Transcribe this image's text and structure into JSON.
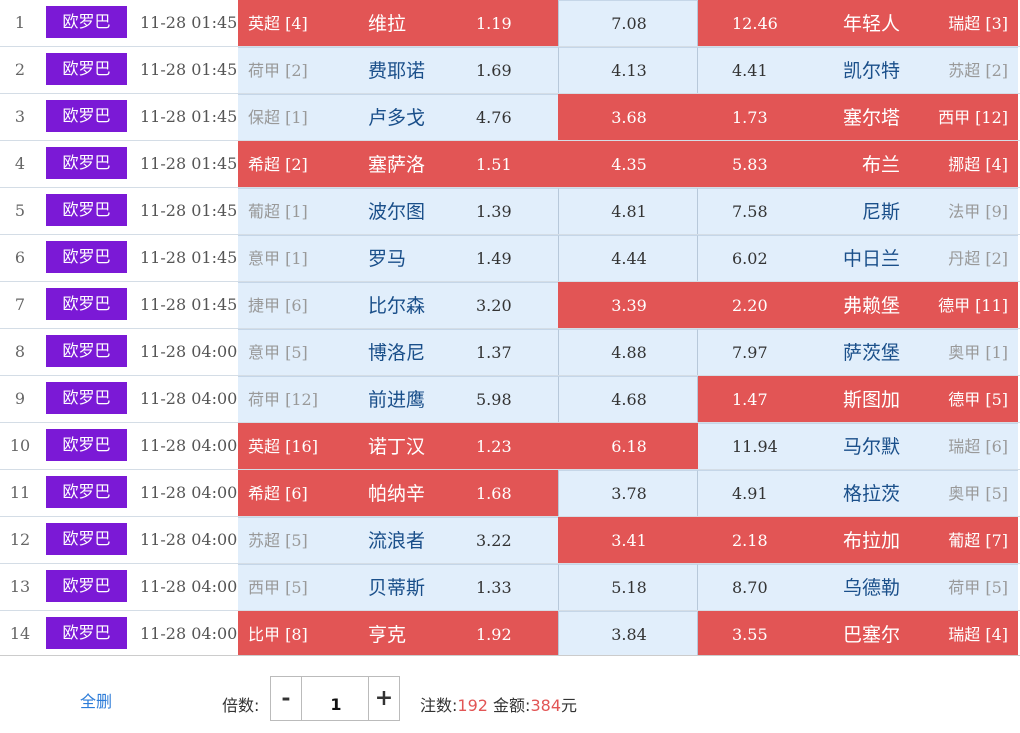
{
  "matches": [
    {
      "idx": "1",
      "league": "欧罗巴",
      "time": "11-28 01:45",
      "home_league": "英超 [4]",
      "home": "维拉",
      "home_odds": "1.19",
      "draw_odds": "7.08",
      "away_odds": "12.46",
      "away": "年轻人",
      "away_league": "瑞超 [3]",
      "home_selected": true,
      "draw_selected": false,
      "away_selected": true
    },
    {
      "idx": "2",
      "league": "欧罗巴",
      "time": "11-28 01:45",
      "home_league": "荷甲 [2]",
      "home": "费耶诺",
      "home_odds": "1.69",
      "draw_odds": "4.13",
      "away_odds": "4.41",
      "away": "凯尔特",
      "away_league": "苏超 [2]",
      "home_selected": false,
      "draw_selected": false,
      "away_selected": false
    },
    {
      "idx": "3",
      "league": "欧罗巴",
      "time": "11-28 01:45",
      "home_league": "保超 [1]",
      "home": "卢多戈",
      "home_odds": "4.76",
      "draw_odds": "3.68",
      "away_odds": "1.73",
      "away": "塞尔塔",
      "away_league": "西甲 [12]",
      "home_selected": false,
      "draw_selected": true,
      "away_selected": true
    },
    {
      "idx": "4",
      "league": "欧罗巴",
      "time": "11-28 01:45",
      "home_league": "希超 [2]",
      "home": "塞萨洛",
      "home_odds": "1.51",
      "draw_odds": "4.35",
      "away_odds": "5.83",
      "away": "布兰",
      "away_league": "挪超 [4]",
      "home_selected": true,
      "draw_selected": true,
      "away_selected": true
    },
    {
      "idx": "5",
      "league": "欧罗巴",
      "time": "11-28 01:45",
      "home_league": "葡超 [1]",
      "home": "波尔图",
      "home_odds": "1.39",
      "draw_odds": "4.81",
      "away_odds": "7.58",
      "away": "尼斯",
      "away_league": "法甲 [9]",
      "home_selected": false,
      "draw_selected": false,
      "away_selected": false
    },
    {
      "idx": "6",
      "league": "欧罗巴",
      "time": "11-28 01:45",
      "home_league": "意甲 [1]",
      "home": "罗马",
      "home_odds": "1.49",
      "draw_odds": "4.44",
      "away_odds": "6.02",
      "away": "中日兰",
      "away_league": "丹超 [2]",
      "home_selected": false,
      "draw_selected": false,
      "away_selected": false
    },
    {
      "idx": "7",
      "league": "欧罗巴",
      "time": "11-28 01:45",
      "home_league": "捷甲 [6]",
      "home": "比尔森",
      "home_odds": "3.20",
      "draw_odds": "3.39",
      "away_odds": "2.20",
      "away": "弗赖堡",
      "away_league": "德甲 [11]",
      "home_selected": false,
      "draw_selected": true,
      "away_selected": true
    },
    {
      "idx": "8",
      "league": "欧罗巴",
      "time": "11-28 04:00",
      "home_league": "意甲 [5]",
      "home": "博洛尼",
      "home_odds": "1.37",
      "draw_odds": "4.88",
      "away_odds": "7.97",
      "away": "萨茨堡",
      "away_league": "奥甲 [1]",
      "home_selected": false,
      "draw_selected": false,
      "away_selected": false
    },
    {
      "idx": "9",
      "league": "欧罗巴",
      "time": "11-28 04:00",
      "home_league": "荷甲 [12]",
      "home": "前进鹰",
      "home_odds": "5.98",
      "draw_odds": "4.68",
      "away_odds": "1.47",
      "away": "斯图加",
      "away_league": "德甲 [5]",
      "home_selected": false,
      "draw_selected": false,
      "away_selected": true
    },
    {
      "idx": "10",
      "league": "欧罗巴",
      "time": "11-28 04:00",
      "home_league": "英超 [16]",
      "home": "诺丁汉",
      "home_odds": "1.23",
      "draw_odds": "6.18",
      "away_odds": "11.94",
      "away": "马尔默",
      "away_league": "瑞超 [6]",
      "home_selected": true,
      "draw_selected": true,
      "away_selected": false
    },
    {
      "idx": "11",
      "league": "欧罗巴",
      "time": "11-28 04:00",
      "home_league": "希超 [6]",
      "home": "帕纳辛",
      "home_odds": "1.68",
      "draw_odds": "3.78",
      "away_odds": "4.91",
      "away": "格拉茨",
      "away_league": "奥甲 [5]",
      "home_selected": true,
      "draw_selected": false,
      "away_selected": false
    },
    {
      "idx": "12",
      "league": "欧罗巴",
      "time": "11-28 04:00",
      "home_league": "苏超 [5]",
      "home": "流浪者",
      "home_odds": "3.22",
      "draw_odds": "3.41",
      "away_odds": "2.18",
      "away": "布拉加",
      "away_league": "葡超 [7]",
      "home_selected": false,
      "draw_selected": true,
      "away_selected": true
    },
    {
      "idx": "13",
      "league": "欧罗巴",
      "time": "11-28 04:00",
      "home_league": "西甲 [5]",
      "home": "贝蒂斯",
      "home_odds": "1.33",
      "draw_odds": "5.18",
      "away_odds": "8.70",
      "away": "乌德勒",
      "away_league": "荷甲 [5]",
      "home_selected": false,
      "draw_selected": false,
      "away_selected": false
    },
    {
      "idx": "14",
      "league": "欧罗巴",
      "time": "11-28 04:00",
      "home_league": "比甲 [8]",
      "home": "亨克",
      "home_odds": "1.92",
      "draw_odds": "3.84",
      "away_odds": "3.55",
      "away": "巴塞尔",
      "away_league": "瑞超 [4]",
      "home_selected": true,
      "draw_selected": false,
      "away_selected": true
    }
  ],
  "footer": {
    "clear_label": "全删",
    "multiplier_label": "倍数:",
    "minus": "-",
    "multiplier_value": "1",
    "plus": "+",
    "bets_label": "注数:",
    "bets_value": "192",
    "amount_label": "金额:",
    "amount_value": "384",
    "amount_unit": "元"
  },
  "colors": {
    "selected": "#e25555",
    "unselected": "#e1eefb",
    "badge": "#7b19d6"
  }
}
